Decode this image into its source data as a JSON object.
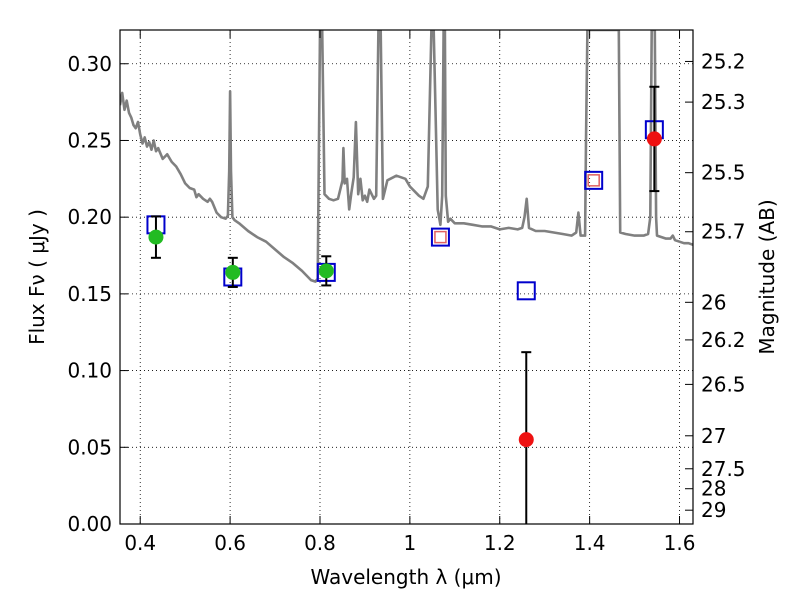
{
  "chart_data": {
    "type": "scatter",
    "xlabel": "Wavelength  λ (μm)",
    "ylabel": "Flux  Fν  ( μJy )",
    "ylabel_right": "Magnitude (AB)",
    "xlim": [
      0.355,
      1.63
    ],
    "ylim": [
      0.0,
      0.322
    ],
    "grid": true,
    "x_ticks": [
      0.4,
      0.6,
      0.8,
      1.0,
      1.2,
      1.4,
      1.6
    ],
    "x_tick_labels": [
      "0.4",
      "0.6",
      "0.8",
      "1",
      "1.2",
      "1.4",
      "1.6"
    ],
    "y_ticks": [
      0.0,
      0.05,
      0.1,
      0.15,
      0.2,
      0.25,
      0.3
    ],
    "y_tick_labels": [
      "0.00",
      "0.05",
      "0.10",
      "0.15",
      "0.20",
      "0.25",
      "0.30"
    ],
    "right_ticks": [
      {
        "label": "25.2",
        "flux": 0.3015
      },
      {
        "label": "25.3",
        "flux": 0.275
      },
      {
        "label": "25.5",
        "flux": 0.229
      },
      {
        "label": "25.7",
        "flux": 0.1905
      },
      {
        "label": "26",
        "flux": 0.1445
      },
      {
        "label": "26.2",
        "flux": 0.12
      },
      {
        "label": "26.5",
        "flux": 0.091
      },
      {
        "label": "27",
        "flux": 0.0575
      },
      {
        "label": "27.5",
        "flux": 0.036
      },
      {
        "label": "28",
        "flux": 0.023
      },
      {
        "label": "29",
        "flux": 0.009
      }
    ],
    "series": [
      {
        "color": "#808080",
        "points": [
          [
            0.355,
            0.273
          ],
          [
            0.36,
            0.281
          ],
          [
            0.365,
            0.27
          ],
          [
            0.37,
            0.276
          ],
          [
            0.375,
            0.268
          ],
          [
            0.38,
            0.265
          ],
          [
            0.385,
            0.26
          ],
          [
            0.39,
            0.258
          ],
          [
            0.395,
            0.262
          ],
          [
            0.4,
            0.254
          ],
          [
            0.405,
            0.248
          ],
          [
            0.41,
            0.252
          ],
          [
            0.415,
            0.246
          ],
          [
            0.42,
            0.249
          ],
          [
            0.425,
            0.244
          ],
          [
            0.43,
            0.25
          ],
          [
            0.435,
            0.243
          ],
          [
            0.44,
            0.245
          ],
          [
            0.45,
            0.238
          ],
          [
            0.46,
            0.241
          ],
          [
            0.47,
            0.236
          ],
          [
            0.48,
            0.233
          ],
          [
            0.49,
            0.228
          ],
          [
            0.5,
            0.222
          ],
          [
            0.51,
            0.219
          ],
          [
            0.52,
            0.218
          ],
          [
            0.525,
            0.213
          ],
          [
            0.53,
            0.215
          ],
          [
            0.54,
            0.212
          ],
          [
            0.55,
            0.21
          ],
          [
            0.555,
            0.212
          ],
          [
            0.56,
            0.21
          ],
          [
            0.57,
            0.203
          ],
          [
            0.58,
            0.2
          ],
          [
            0.59,
            0.199
          ],
          [
            0.595,
            0.201
          ],
          [
            0.598,
            0.23
          ],
          [
            0.6,
            0.282
          ],
          [
            0.602,
            0.23
          ],
          [
            0.605,
            0.2
          ],
          [
            0.61,
            0.198
          ],
          [
            0.62,
            0.196
          ],
          [
            0.64,
            0.191
          ],
          [
            0.66,
            0.187
          ],
          [
            0.68,
            0.184
          ],
          [
            0.7,
            0.179
          ],
          [
            0.72,
            0.174
          ],
          [
            0.74,
            0.17
          ],
          [
            0.76,
            0.165
          ],
          [
            0.78,
            0.159
          ],
          [
            0.79,
            0.158
          ],
          [
            0.795,
            0.16
          ],
          [
            0.8,
            0.322
          ],
          [
            0.805,
            0.322
          ],
          [
            0.81,
            0.215
          ],
          [
            0.82,
            0.212
          ],
          [
            0.83,
            0.211
          ],
          [
            0.84,
            0.212
          ],
          [
            0.85,
            0.224
          ],
          [
            0.852,
            0.245
          ],
          [
            0.855,
            0.222
          ],
          [
            0.86,
            0.225
          ],
          [
            0.865,
            0.205
          ],
          [
            0.87,
            0.216
          ],
          [
            0.875,
            0.226
          ],
          [
            0.88,
            0.262
          ],
          [
            0.885,
            0.215
          ],
          [
            0.89,
            0.225
          ],
          [
            0.895,
            0.211
          ],
          [
            0.9,
            0.214
          ],
          [
            0.905,
            0.21
          ],
          [
            0.91,
            0.218
          ],
          [
            0.92,
            0.212
          ],
          [
            0.925,
            0.214
          ],
          [
            0.93,
            0.322
          ],
          [
            0.935,
            0.322
          ],
          [
            0.94,
            0.212
          ],
          [
            0.95,
            0.224
          ],
          [
            0.97,
            0.227
          ],
          [
            0.99,
            0.225
          ],
          [
            1.0,
            0.22
          ],
          [
            1.02,
            0.214
          ],
          [
            1.03,
            0.212
          ],
          [
            1.04,
            0.22
          ],
          [
            1.045,
            0.285
          ],
          [
            1.048,
            0.322
          ],
          [
            1.053,
            0.322
          ],
          [
            1.057,
            0.27
          ],
          [
            1.062,
            0.205
          ],
          [
            1.068,
            0.195
          ],
          [
            1.072,
            0.214
          ],
          [
            1.075,
            0.322
          ],
          [
            1.078,
            0.322
          ],
          [
            1.08,
            0.214
          ],
          [
            1.085,
            0.197
          ],
          [
            1.09,
            0.199
          ],
          [
            1.1,
            0.196
          ],
          [
            1.12,
            0.196
          ],
          [
            1.14,
            0.195
          ],
          [
            1.16,
            0.194
          ],
          [
            1.18,
            0.194
          ],
          [
            1.2,
            0.192
          ],
          [
            1.22,
            0.193
          ],
          [
            1.24,
            0.192
          ],
          [
            1.25,
            0.193
          ],
          [
            1.255,
            0.2
          ],
          [
            1.26,
            0.212
          ],
          [
            1.265,
            0.193
          ],
          [
            1.28,
            0.191
          ],
          [
            1.3,
            0.191
          ],
          [
            1.32,
            0.19
          ],
          [
            1.34,
            0.189
          ],
          [
            1.36,
            0.188
          ],
          [
            1.37,
            0.19
          ],
          [
            1.375,
            0.203
          ],
          [
            1.38,
            0.188
          ],
          [
            1.39,
            0.188
          ],
          [
            1.392,
            0.25
          ],
          [
            1.395,
            0.322
          ],
          [
            1.4,
            0.322
          ],
          [
            1.405,
            0.322
          ],
          [
            1.41,
            0.322
          ],
          [
            1.415,
            0.322
          ],
          [
            1.42,
            0.322
          ],
          [
            1.425,
            0.322
          ],
          [
            1.43,
            0.322
          ],
          [
            1.435,
            0.322
          ],
          [
            1.44,
            0.322
          ],
          [
            1.445,
            0.322
          ],
          [
            1.45,
            0.322
          ],
          [
            1.455,
            0.322
          ],
          [
            1.46,
            0.322
          ],
          [
            1.465,
            0.322
          ],
          [
            1.468,
            0.19
          ],
          [
            1.48,
            0.189
          ],
          [
            1.5,
            0.188
          ],
          [
            1.52,
            0.188
          ],
          [
            1.53,
            0.189
          ],
          [
            1.535,
            0.2
          ],
          [
            1.538,
            0.322
          ],
          [
            1.545,
            0.322
          ],
          [
            1.548,
            0.2
          ],
          [
            1.55,
            0.188
          ],
          [
            1.56,
            0.187
          ],
          [
            1.57,
            0.186
          ],
          [
            1.58,
            0.186
          ],
          [
            1.585,
            0.188
          ],
          [
            1.59,
            0.185
          ],
          [
            1.6,
            0.184
          ],
          [
            1.61,
            0.183
          ],
          [
            1.62,
            0.183
          ],
          [
            1.63,
            0.182
          ]
        ]
      }
    ],
    "model_boxes": [
      {
        "x": 0.435,
        "y": 0.195,
        "color": "#0000cc"
      },
      {
        "x": 0.606,
        "y": 0.161,
        "color": "#0000cc"
      },
      {
        "x": 0.814,
        "y": 0.164,
        "color": "#0000cc"
      },
      {
        "x": 1.068,
        "y": 0.187,
        "color": "#0000cc"
      },
      {
        "x": 1.259,
        "y": 0.152,
        "color": "#0000cc"
      },
      {
        "x": 1.409,
        "y": 0.224,
        "color": "#0000cc"
      },
      {
        "x": 1.544,
        "y": 0.257,
        "color": "#0000cc"
      }
    ],
    "inner_boxes": [
      {
        "x": 1.068,
        "y": 0.187,
        "color": "#e06060"
      },
      {
        "x": 1.409,
        "y": 0.224,
        "color": "#e06060"
      }
    ],
    "observations": [
      {
        "x": 0.435,
        "y": 0.187,
        "err": 0.0135,
        "color": "#22bb22"
      },
      {
        "x": 0.606,
        "y": 0.164,
        "err": 0.0095,
        "color": "#22bb22"
      },
      {
        "x": 0.814,
        "y": 0.165,
        "err": 0.0095,
        "color": "#22bb22"
      },
      {
        "x": 1.259,
        "y": 0.055,
        "err": 0.057,
        "color": "#ee1111"
      },
      {
        "x": 1.544,
        "y": 0.251,
        "err": 0.034,
        "color": "#ee1111"
      }
    ]
  }
}
